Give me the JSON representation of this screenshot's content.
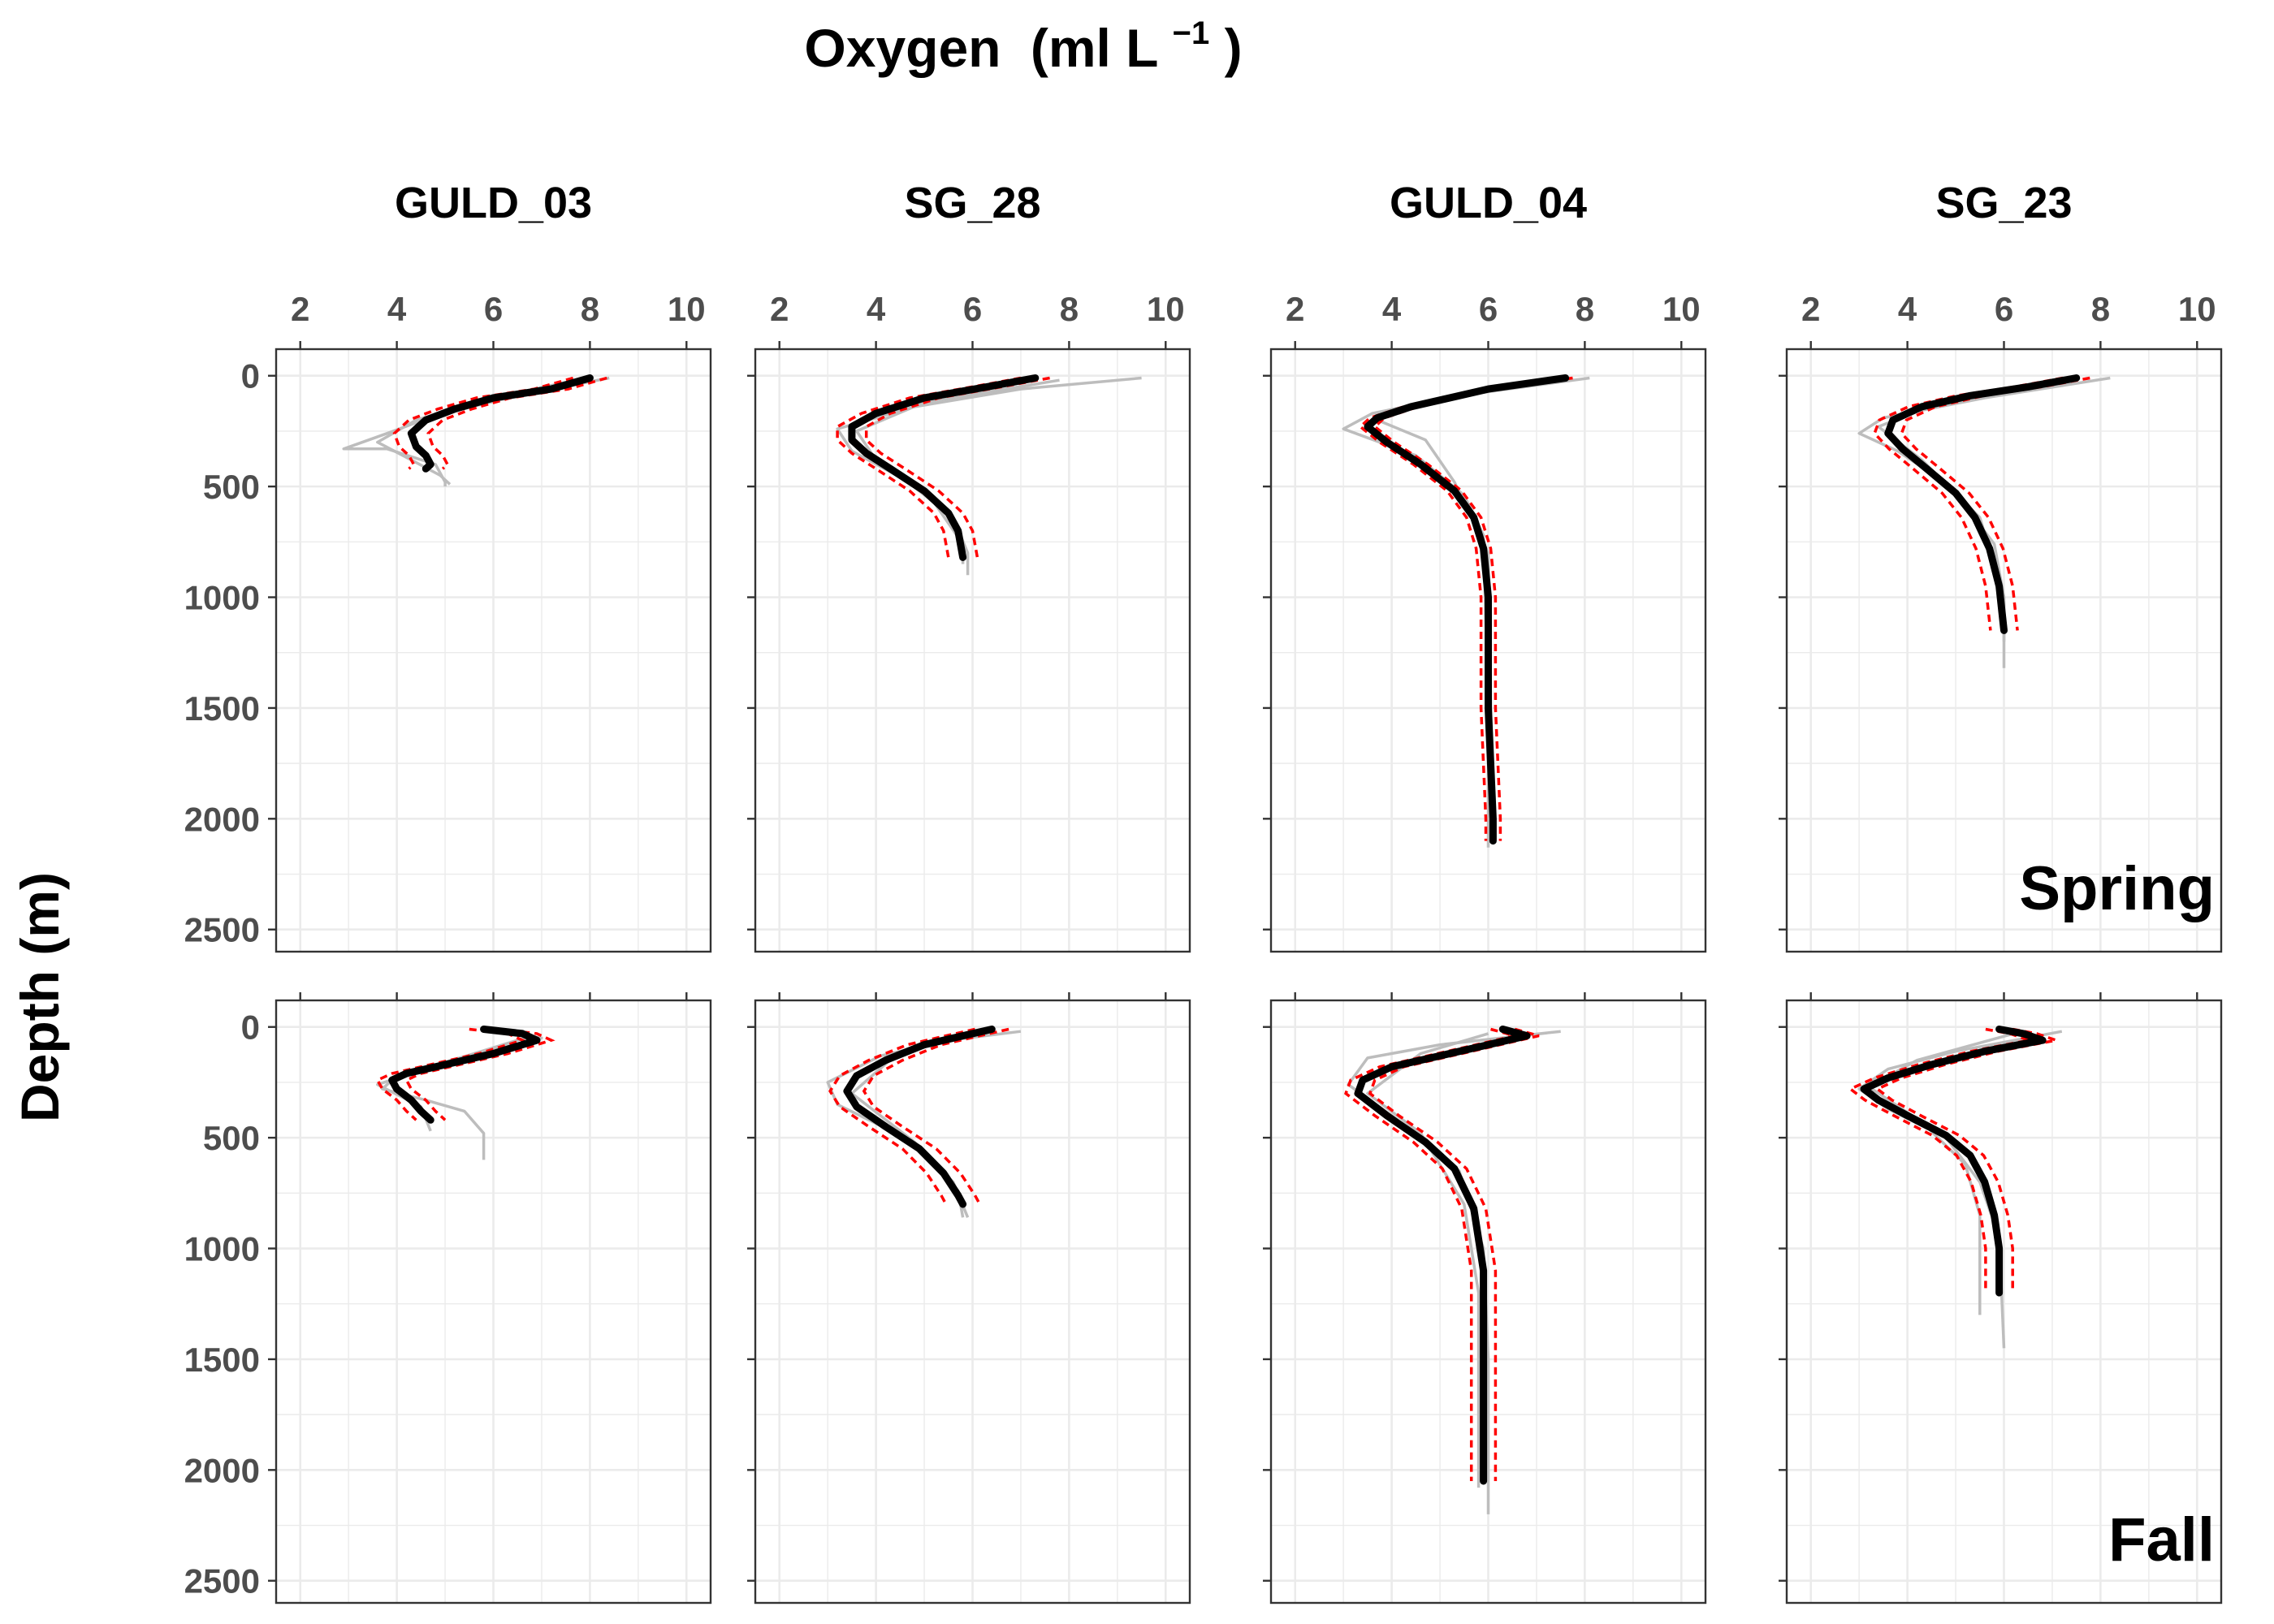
{
  "figure": {
    "title": "Oxygen",
    "title_unit": "(ml L",
    "title_sup": "−1",
    "title_close": ")",
    "ylabel": "Depth (m)"
  },
  "chart_data": {
    "type": "line",
    "layout": "facet grid, 2 rows (seasons) x 4 columns (stations)",
    "xlabel": "Oxygen (ml L−1)",
    "ylabel": "Depth (m)",
    "xlim": [
      1.5,
      10.5
    ],
    "ylim": [
      2600,
      -120
    ],
    "y_reversed": true,
    "xticks": [
      2,
      4,
      6,
      8,
      10
    ],
    "yticks": [
      0,
      500,
      1000,
      1500,
      2000,
      2500
    ],
    "grid": true,
    "stations": [
      "GULD_03",
      "SG_28",
      "GULD_04",
      "SG_23"
    ],
    "seasons": [
      "Spring",
      "Fall"
    ],
    "series_styles": {
      "individual_profiles": "#bdbdbd",
      "mean_profile": "#000000",
      "confidence_band": "#ff0000"
    },
    "panels": [
      {
        "station": "GULD_03",
        "season": "Spring",
        "mean": [
          [
            8.0,
            10
          ],
          [
            7.2,
            60
          ],
          [
            6.0,
            100
          ],
          [
            5.2,
            150
          ],
          [
            4.6,
            200
          ],
          [
            4.3,
            260
          ],
          [
            4.4,
            320
          ],
          [
            4.6,
            360
          ],
          [
            4.7,
            400
          ],
          [
            4.6,
            420
          ]
        ],
        "sd": 0.35,
        "grey": [
          [
            [
              8.4,
              10
            ],
            [
              6.5,
              90
            ],
            [
              4.8,
              180
            ],
            [
              3.8,
              260
            ],
            [
              2.9,
              330
            ],
            [
              3.8,
              330
            ],
            [
              4.8,
              400
            ],
            [
              5.0,
              480
            ],
            [
              5.0,
              500
            ]
          ],
          [
            [
              7.7,
              20
            ],
            [
              5.8,
              110
            ],
            [
              4.4,
              200
            ],
            [
              3.6,
              300
            ],
            [
              4.3,
              380
            ],
            [
              4.9,
              450
            ],
            [
              5.1,
              490
            ]
          ]
        ]
      },
      {
        "station": "SG_28",
        "season": "Spring",
        "mean": [
          [
            7.3,
            10
          ],
          [
            6.3,
            50
          ],
          [
            5.0,
            100
          ],
          [
            4.0,
            170
          ],
          [
            3.5,
            230
          ],
          [
            3.5,
            290
          ],
          [
            3.8,
            350
          ],
          [
            4.3,
            420
          ],
          [
            5.0,
            520
          ],
          [
            5.5,
            620
          ],
          [
            5.7,
            700
          ],
          [
            5.8,
            820
          ]
        ],
        "sd": 0.3,
        "grey": [
          [
            [
              9.5,
              10
            ],
            [
              7.0,
              60
            ],
            [
              4.8,
              140
            ],
            [
              3.2,
              240
            ],
            [
              3.5,
              340
            ],
            [
              4.6,
              470
            ],
            [
              5.6,
              640
            ],
            [
              5.9,
              800
            ],
            [
              5.9,
              900
            ]
          ],
          [
            [
              7.8,
              20
            ],
            [
              5.0,
              120
            ],
            [
              3.6,
              250
            ],
            [
              4.0,
              380
            ],
            [
              5.1,
              540
            ],
            [
              5.8,
              760
            ],
            [
              5.8,
              850
            ]
          ]
        ]
      },
      {
        "station": "GULD_04",
        "season": "Spring",
        "mean": [
          [
            7.6,
            10
          ],
          [
            6.0,
            60
          ],
          [
            4.4,
            140
          ],
          [
            3.7,
            190
          ],
          [
            3.5,
            230
          ],
          [
            3.9,
            300
          ],
          [
            4.6,
            400
          ],
          [
            5.3,
            520
          ],
          [
            5.7,
            640
          ],
          [
            5.9,
            780
          ],
          [
            6.0,
            1000
          ],
          [
            6.0,
            1500
          ],
          [
            6.1,
            2000
          ],
          [
            6.1,
            2100
          ]
        ],
        "sd": 0.15,
        "grey": [
          [
            [
              8.1,
              10
            ],
            [
              5.4,
              90
            ],
            [
              3.6,
              170
            ],
            [
              3.0,
              240
            ],
            [
              4.5,
              360
            ],
            [
              5.5,
              540
            ],
            [
              5.9,
              720
            ],
            [
              6.0,
              1500
            ],
            [
              6.0,
              2130
            ]
          ],
          [
            [
              7.2,
              20
            ],
            [
              4.8,
              120
            ],
            [
              3.7,
              200
            ],
            [
              4.7,
              290
            ],
            [
              5.3,
              480
            ],
            [
              6.0,
              800
            ],
            [
              6.1,
              2100
            ]
          ]
        ]
      },
      {
        "station": "SG_23",
        "season": "Spring",
        "mean": [
          [
            7.5,
            10
          ],
          [
            6.5,
            50
          ],
          [
            5.3,
            90
          ],
          [
            4.3,
            140
          ],
          [
            3.7,
            200
          ],
          [
            3.6,
            260
          ],
          [
            3.9,
            330
          ],
          [
            4.4,
            420
          ],
          [
            5.0,
            530
          ],
          [
            5.4,
            640
          ],
          [
            5.7,
            780
          ],
          [
            5.9,
            950
          ],
          [
            6.0,
            1150
          ]
        ],
        "sd": 0.28,
        "grey": [
          [
            [
              8.2,
              10
            ],
            [
              5.6,
              100
            ],
            [
              3.5,
              190
            ],
            [
              3.0,
              260
            ],
            [
              3.8,
              340
            ],
            [
              4.9,
              500
            ],
            [
              5.8,
              760
            ],
            [
              6.0,
              1000
            ],
            [
              6.0,
              1320
            ]
          ],
          [
            [
              7.0,
              20
            ],
            [
              4.8,
              110
            ],
            [
              3.4,
              230
            ],
            [
              4.3,
              380
            ],
            [
              5.5,
              640
            ],
            [
              6.0,
              1000
            ],
            [
              6.0,
              1200
            ]
          ]
        ]
      },
      {
        "station": "GULD_03",
        "season": "Fall",
        "mean": [
          [
            5.8,
            10
          ],
          [
            6.6,
            30
          ],
          [
            6.9,
            60
          ],
          [
            6.0,
            120
          ],
          [
            5.0,
            170
          ],
          [
            4.2,
            210
          ],
          [
            3.9,
            240
          ],
          [
            4.0,
            280
          ],
          [
            4.3,
            330
          ],
          [
            4.5,
            380
          ],
          [
            4.7,
            420
          ]
        ],
        "sd": 0.3,
        "grey": [
          [
            [
              6.2,
              20
            ],
            [
              7.0,
              50
            ],
            [
              5.3,
              140
            ],
            [
              4.0,
              220
            ],
            [
              3.7,
              280
            ],
            [
              4.6,
              330
            ],
            [
              5.4,
              380
            ],
            [
              5.8,
              480
            ],
            [
              5.8,
              600
            ]
          ],
          [
            [
              6.8,
              40
            ],
            [
              5.0,
              160
            ],
            [
              3.6,
              260
            ],
            [
              4.5,
              360
            ],
            [
              4.7,
              470
            ]
          ]
        ]
      },
      {
        "station": "SG_28",
        "season": "Fall",
        "mean": [
          [
            6.4,
            10
          ],
          [
            5.8,
            40
          ],
          [
            5.0,
            80
          ],
          [
            4.2,
            150
          ],
          [
            3.6,
            220
          ],
          [
            3.4,
            290
          ],
          [
            3.6,
            360
          ],
          [
            4.2,
            450
          ],
          [
            4.9,
            550
          ],
          [
            5.4,
            660
          ],
          [
            5.7,
            760
          ],
          [
            5.8,
            800
          ]
        ],
        "sd": 0.35,
        "grey": [
          [
            [
              7.0,
              20
            ],
            [
              5.5,
              60
            ],
            [
              4.1,
              130
            ],
            [
              3.0,
              250
            ],
            [
              3.2,
              350
            ],
            [
              4.6,
              500
            ],
            [
              5.6,
              700
            ],
            [
              5.9,
              860
            ]
          ],
          [
            [
              6.3,
              30
            ],
            [
              4.5,
              110
            ],
            [
              3.5,
              300
            ],
            [
              4.8,
              520
            ],
            [
              5.7,
              740
            ],
            [
              5.8,
              860
            ]
          ]
        ]
      },
      {
        "station": "GULD_04",
        "season": "Fall",
        "mean": [
          [
            6.3,
            10
          ],
          [
            6.8,
            40
          ],
          [
            6.0,
            80
          ],
          [
            5.0,
            130
          ],
          [
            4.0,
            180
          ],
          [
            3.4,
            240
          ],
          [
            3.3,
            300
          ],
          [
            3.9,
            400
          ],
          [
            4.7,
            520
          ],
          [
            5.3,
            640
          ],
          [
            5.7,
            820
          ],
          [
            5.9,
            1100
          ],
          [
            5.9,
            1500
          ],
          [
            5.9,
            2050
          ]
        ],
        "sd": 0.25,
        "grey": [
          [
            [
              7.5,
              20
            ],
            [
              5.0,
              80
            ],
            [
              3.5,
              140
            ],
            [
              3.1,
              260
            ],
            [
              4.0,
              400
            ],
            [
              5.4,
              650
            ],
            [
              5.9,
              1000
            ],
            [
              6.0,
              1500
            ],
            [
              6.0,
              2200
            ]
          ],
          [
            [
              6.0,
              30
            ],
            [
              4.6,
              120
            ],
            [
              3.5,
              300
            ],
            [
              4.6,
              480
            ],
            [
              5.5,
              800
            ],
            [
              5.8,
              1200
            ],
            [
              5.8,
              2080
            ]
          ]
        ]
      },
      {
        "station": "SG_23",
        "season": "Fall",
        "mean": [
          [
            5.9,
            10
          ],
          [
            6.4,
            30
          ],
          [
            6.8,
            60
          ],
          [
            5.6,
            110
          ],
          [
            4.5,
            170
          ],
          [
            3.6,
            230
          ],
          [
            3.1,
            280
          ],
          [
            3.4,
            330
          ],
          [
            4.0,
            400
          ],
          [
            4.8,
            490
          ],
          [
            5.3,
            580
          ],
          [
            5.6,
            700
          ],
          [
            5.8,
            850
          ],
          [
            5.9,
            1000
          ],
          [
            5.9,
            1200
          ]
        ],
        "sd": 0.28,
        "grey": [
          [
            [
              7.2,
              20
            ],
            [
              5.0,
              110
            ],
            [
              3.6,
              190
            ],
            [
              3.0,
              280
            ],
            [
              3.6,
              370
            ],
            [
              4.8,
              500
            ],
            [
              5.5,
              700
            ],
            [
              5.9,
              950
            ],
            [
              6.0,
              1450
            ]
          ],
          [
            [
              6.2,
              30
            ],
            [
              4.2,
              150
            ],
            [
              3.2,
              270
            ],
            [
              4.3,
              430
            ],
            [
              5.2,
              620
            ],
            [
              5.5,
              850
            ],
            [
              5.5,
              1300
            ]
          ]
        ]
      }
    ]
  }
}
